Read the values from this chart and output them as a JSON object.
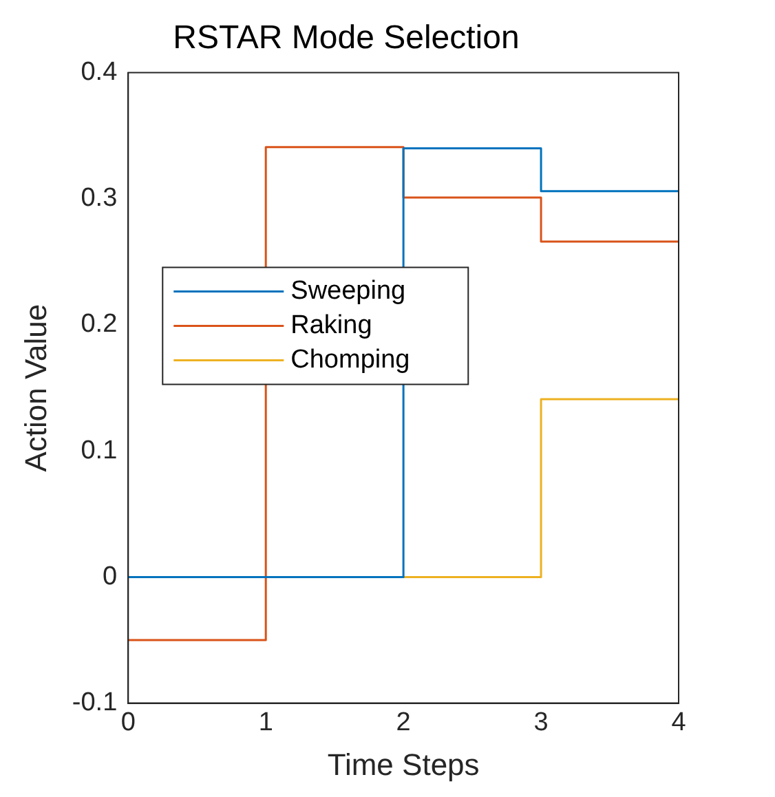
{
  "chart_data": {
    "type": "step",
    "title": "RSTAR Mode Selection",
    "xlabel": "Time Steps",
    "ylabel": "Action Value",
    "x": [
      0,
      1,
      2,
      3,
      4
    ],
    "series": [
      {
        "name": "Sweeping",
        "color": "#0072bd",
        "values": [
          0,
          0,
          0.34,
          0.306,
          0.306
        ]
      },
      {
        "name": "Raking",
        "color": "#d95319",
        "values": [
          -0.05,
          0.341,
          0.301,
          0.266,
          0.266
        ]
      },
      {
        "name": "Chomping",
        "color": "#edb120",
        "values": [
          0,
          0,
          0,
          0.141,
          0.141
        ]
      }
    ],
    "xlim": [
      0,
      4
    ],
    "xticks": [
      0,
      1,
      2,
      3,
      4
    ],
    "ylim": [
      -0.1,
      0.4
    ],
    "yticks": [
      -0.1,
      0,
      0.1,
      0.2,
      0.3,
      0.4
    ],
    "grid": false,
    "legend": "left",
    "marker": "none",
    "line_style": "solid"
  }
}
